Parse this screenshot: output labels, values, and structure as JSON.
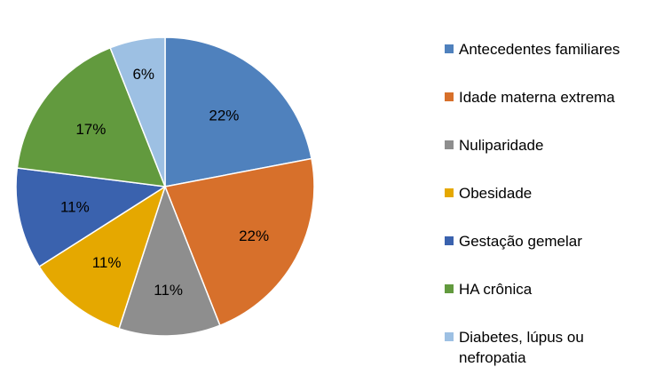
{
  "chart_data": {
    "type": "pie",
    "title": "",
    "legend_position": "right",
    "categories": [
      "Antecedentes familiares",
      "Idade materna extrema",
      "Nuliparidade",
      "Obesidade",
      "Gestação gemelar",
      "HA crônica",
      "Diabetes, lúpus ou nefropatia"
    ],
    "values": [
      22,
      22,
      11,
      11,
      11,
      17,
      6
    ],
    "data_labels": [
      "22%",
      "22%",
      "11%",
      "11%",
      "11%",
      "17%",
      "6%"
    ],
    "colors": [
      "#4F81BD",
      "#D7702B",
      "#8E8E8E",
      "#E5A800",
      "#3A62AE",
      "#629A3E",
      "#9DC0E3"
    ]
  }
}
